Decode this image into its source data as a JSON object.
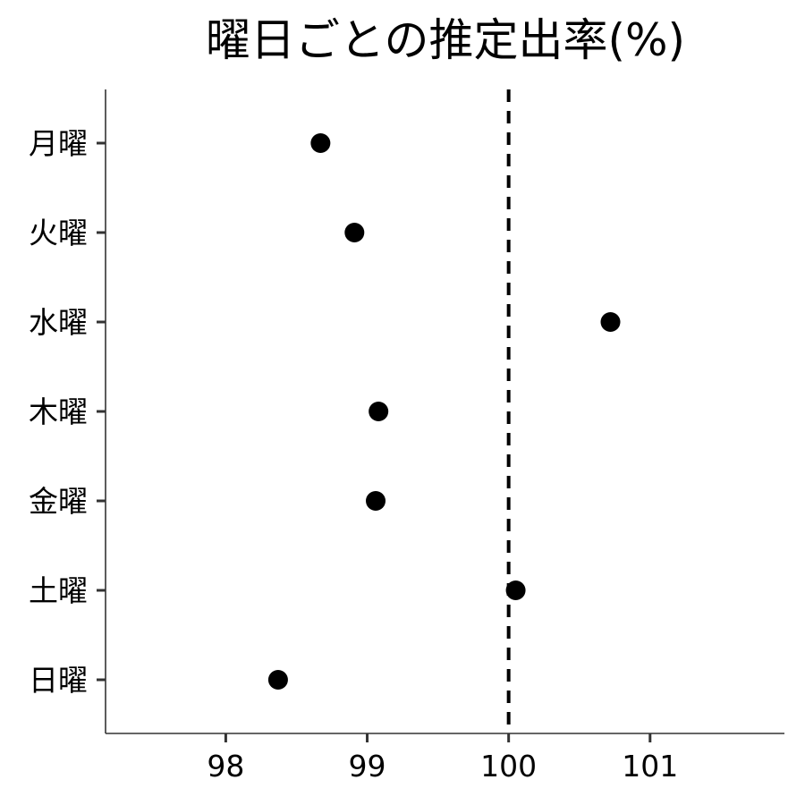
{
  "chart_data": {
    "type": "scatter",
    "title": "曜日ごとの推定出率(%)",
    "xlabel": "",
    "ylabel": "",
    "categories": [
      "月曜",
      "火曜",
      "水曜",
      "木曜",
      "金曜",
      "土曜",
      "日曜"
    ],
    "values": [
      98.67,
      98.91,
      100.72,
      99.08,
      99.06,
      100.05,
      98.37
    ],
    "xlim": [
      97.15,
      101.95
    ],
    "x_ticks": [
      98,
      99,
      100,
      101
    ],
    "x_tick_labels": [
      "98",
      "99",
      "100",
      "101"
    ],
    "reference_line": {
      "x": 100,
      "style": "dashed",
      "color": "#000000"
    },
    "point_color": "#000000",
    "grid": false,
    "legend": "none"
  }
}
